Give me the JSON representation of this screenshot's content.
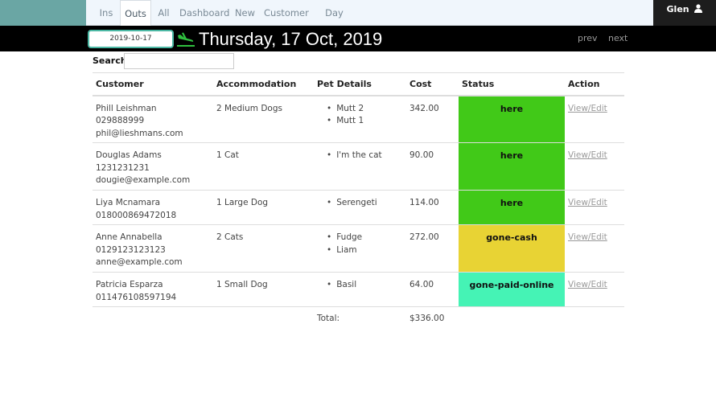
{
  "nav": {
    "tabs": [
      {
        "label": "Ins"
      },
      {
        "label": "Outs"
      },
      {
        "label": "All"
      },
      {
        "label": "Dashboard"
      },
      {
        "label": "New"
      },
      {
        "label": "Customer"
      },
      {
        "label": "Day Dogs"
      }
    ],
    "active_tab": "Outs",
    "user": "Glen"
  },
  "datebar": {
    "date_value": "2019-10-17",
    "title": "Thursday, 17 Oct, 2019",
    "prev_label": "prev",
    "next_label": "next"
  },
  "search": {
    "label": "Search:",
    "value": ""
  },
  "table": {
    "headers": {
      "customer": "Customer",
      "accommodation": "Accommodation",
      "pet_details": "Pet Details",
      "cost": "Cost",
      "status": "Status",
      "action": "Action"
    },
    "rows": [
      {
        "name": "Phill Leishman",
        "phone": "029888999",
        "email": "phil@lieshmans.com",
        "accommodation": "2 Medium Dogs",
        "pets": [
          "Mutt 2",
          "Mutt 1"
        ],
        "cost": "342.00",
        "status": "here",
        "status_color": "#41c918",
        "action": "View/Edit"
      },
      {
        "name": "Douglas Adams",
        "phone": "1231231231",
        "email": "dougie@example.com",
        "accommodation": "1 Cat",
        "pets": [
          "I'm the cat"
        ],
        "cost": "90.00",
        "status": "here",
        "status_color": "#41c918",
        "action": "View/Edit"
      },
      {
        "name": "Liya Mcnamara",
        "phone": "018000869472018",
        "email": "",
        "accommodation": "1 Large Dog",
        "pets": [
          "Serengeti"
        ],
        "cost": "114.00",
        "status": "here",
        "status_color": "#41c918",
        "action": "View/Edit"
      },
      {
        "name": "Anne Annabella",
        "phone": "0129123123123",
        "email": "anne@example.com",
        "accommodation": "2 Cats",
        "pets": [
          "Fudge",
          "Liam"
        ],
        "cost": "272.00",
        "status": "gone-cash",
        "status_color": "#e8d334",
        "action": "View/Edit"
      },
      {
        "name": "Patricia Esparza",
        "phone": "011476108597194",
        "email": "",
        "accommodation": "1 Small Dog",
        "pets": [
          "Basil"
        ],
        "cost": "64.00",
        "status": "gone-paid-online",
        "status_color": "#45f3b5",
        "action": "View/Edit"
      }
    ],
    "total_label": "Total:",
    "total_value": "$336.00"
  },
  "colors": {
    "topbar": "#6aa6a4",
    "nav_bg": "#f0f6fc",
    "datebar": "#000000",
    "date_field_border": "#4bb8a4"
  },
  "icons": {
    "user": "user-icon",
    "date": "plane-landing-icon"
  }
}
